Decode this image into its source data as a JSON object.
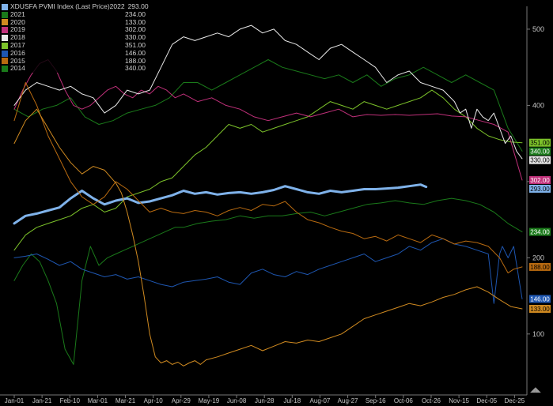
{
  "legend": {
    "title": "XDUSFA PVMI Index (Last Price)",
    "rows": [
      {
        "name": "2022",
        "value": "293.00",
        "color": "#7fb2ea"
      },
      {
        "name": "2021",
        "value": "234.00",
        "color": "#1a7a1a"
      },
      {
        "name": "2020",
        "value": "133.00",
        "color": "#d08a20"
      },
      {
        "name": "2019",
        "value": "302.00",
        "color": "#c0307a"
      },
      {
        "name": "2018",
        "value": "330.00",
        "color": "#e8e8e8"
      },
      {
        "name": "2017",
        "value": "351.00",
        "color": "#7cc22a"
      },
      {
        "name": "2016",
        "value": "146.00",
        "color": "#1e56b0"
      },
      {
        "name": "2015",
        "value": "188.00",
        "color": "#b86a10"
      },
      {
        "name": "2014",
        "value": "340.00",
        "color": "#1a7a1a"
      }
    ]
  },
  "chart_data": {
    "type": "line",
    "x_tick_labels": [
      "Jan-01",
      "Jan-21",
      "Feb-10",
      "Mar-01",
      "Mar-21",
      "Apr-10",
      "Apr-29",
      "May-19",
      "Jun-08",
      "Jun-28",
      "Jul-18",
      "Aug-07",
      "Aug-27",
      "Sep-16",
      "Oct-06",
      "Oct-26",
      "Nov-15",
      "Dec-05",
      "Dec-25"
    ],
    "y_ticks": [
      100,
      200,
      300,
      400,
      500
    ],
    "ylim": [
      20,
      530
    ],
    "grid": false,
    "legend_position": "top-left",
    "series": [
      {
        "name": "2014",
        "color": "#1a7a1a",
        "width": 1,
        "end_label": "340.00",
        "x": [
          0,
          10,
          20,
          30,
          40,
          50,
          60,
          70,
          80,
          90,
          100,
          110,
          120,
          130,
          140,
          150,
          160,
          170,
          180,
          190,
          200,
          210,
          220,
          230,
          240,
          250,
          260,
          270,
          280,
          290,
          300,
          310,
          320,
          330,
          340,
          350,
          360
        ],
        "y": [
          395,
          385,
          395,
          400,
          410,
          385,
          375,
          380,
          390,
          395,
          400,
          410,
          430,
          430,
          420,
          430,
          440,
          450,
          460,
          450,
          445,
          440,
          435,
          440,
          430,
          440,
          425,
          435,
          440,
          450,
          440,
          430,
          440,
          430,
          420,
          370,
          340
        ]
      },
      {
        "name": "2017",
        "color": "#7cc22a",
        "width": 1,
        "end_label": "351.00",
        "x": [
          0,
          8,
          16,
          24,
          32,
          40,
          48,
          56,
          64,
          72,
          80,
          88,
          96,
          104,
          112,
          120,
          128,
          136,
          144,
          152,
          160,
          168,
          176,
          184,
          192,
          200,
          208,
          216,
          224,
          232,
          240,
          248,
          256,
          264,
          272,
          280,
          288,
          296,
          304,
          312,
          320,
          328,
          336,
          344,
          352,
          360
        ],
        "y": [
          210,
          230,
          240,
          245,
          250,
          255,
          265,
          270,
          260,
          265,
          280,
          285,
          290,
          300,
          305,
          320,
          335,
          345,
          360,
          375,
          370,
          375,
          365,
          370,
          375,
          380,
          385,
          395,
          405,
          400,
          395,
          405,
          400,
          395,
          400,
          405,
          410,
          420,
          410,
          395,
          385,
          370,
          360,
          355,
          352,
          351
        ]
      },
      {
        "name": "2021",
        "color": "#1a7a1a",
        "width": 1,
        "end_label": "234.00",
        "x": [
          0,
          6,
          12,
          18,
          24,
          30,
          36,
          42,
          48,
          54,
          60,
          66,
          72,
          78,
          84,
          90,
          96,
          102,
          108,
          114,
          120,
          130,
          140,
          150,
          160,
          170,
          180,
          190,
          200,
          210,
          220,
          230,
          240,
          250,
          260,
          270,
          280,
          290,
          300,
          310,
          320,
          330,
          340,
          350,
          360
        ],
        "y": [
          170,
          190,
          205,
          195,
          170,
          140,
          80,
          60,
          170,
          215,
          190,
          200,
          205,
          210,
          215,
          220,
          225,
          230,
          235,
          240,
          240,
          245,
          248,
          250,
          255,
          252,
          255,
          255,
          258,
          260,
          255,
          260,
          265,
          270,
          272,
          275,
          272,
          270,
          275,
          278,
          275,
          270,
          260,
          245,
          234
        ]
      },
      {
        "name": "2019",
        "color": "#c0307a",
        "width": 1,
        "end_label": "302.00",
        "x": [
          0,
          6,
          12,
          18,
          24,
          30,
          36,
          42,
          48,
          54,
          60,
          66,
          72,
          78,
          84,
          90,
          96,
          102,
          108,
          114,
          120,
          130,
          140,
          150,
          160,
          170,
          180,
          190,
          200,
          210,
          220,
          230,
          240,
          250,
          260,
          270,
          280,
          290,
          300,
          310,
          320,
          330,
          340,
          350,
          360
        ],
        "y": [
          395,
          420,
          440,
          455,
          460,
          445,
          420,
          400,
          395,
          400,
          410,
          420,
          425,
          415,
          410,
          420,
          415,
          425,
          420,
          410,
          415,
          405,
          410,
          400,
          395,
          385,
          380,
          385,
          390,
          385,
          390,
          395,
          385,
          388,
          387,
          388,
          387,
          388,
          389,
          386,
          385,
          380,
          375,
          365,
          302
        ]
      },
      {
        "name": "2018",
        "color": "#e8e8e8",
        "width": 1,
        "end_label": "330.00",
        "x": [
          0,
          8,
          16,
          24,
          32,
          40,
          48,
          56,
          64,
          72,
          80,
          88,
          96,
          104,
          112,
          120,
          128,
          136,
          144,
          152,
          160,
          168,
          176,
          184,
          192,
          200,
          208,
          216,
          224,
          232,
          240,
          248,
          256,
          264,
          272,
          280,
          288,
          296,
          304,
          312,
          316,
          320,
          324,
          328,
          332,
          336,
          340,
          344,
          348,
          352,
          356,
          360
        ],
        "y": [
          400,
          420,
          430,
          425,
          420,
          425,
          415,
          410,
          390,
          400,
          420,
          415,
          420,
          450,
          480,
          490,
          485,
          490,
          495,
          490,
          500,
          505,
          495,
          500,
          485,
          480,
          470,
          460,
          475,
          480,
          470,
          460,
          450,
          430,
          440,
          445,
          430,
          425,
          420,
          405,
          390,
          395,
          370,
          395,
          385,
          380,
          390,
          370,
          350,
          360,
          340,
          330
        ]
      },
      {
        "name": "2022",
        "color": "#7fb2ea",
        "width": 3,
        "end_label": "293.00",
        "x": [
          0,
          8,
          16,
          24,
          32,
          40,
          48,
          56,
          64,
          72,
          80,
          88,
          96,
          104,
          112,
          120,
          128,
          136,
          144,
          152,
          160,
          168,
          176,
          184,
          192,
          200,
          208,
          216,
          224,
          232,
          240,
          248,
          256,
          264,
          272,
          280,
          288,
          292
        ],
        "y": [
          245,
          255,
          258,
          262,
          266,
          278,
          288,
          278,
          270,
          275,
          278,
          272,
          274,
          278,
          282,
          288,
          284,
          286,
          283,
          285,
          286,
          284,
          286,
          289,
          294,
          290,
          286,
          284,
          288,
          286,
          288,
          290,
          290,
          291,
          292,
          294,
          296,
          293
        ]
      },
      {
        "name": "2016",
        "color": "#1e56b0",
        "width": 1,
        "end_label": "146.00",
        "x": [
          0,
          8,
          16,
          24,
          32,
          40,
          48,
          56,
          64,
          72,
          80,
          88,
          96,
          104,
          112,
          120,
          128,
          136,
          144,
          152,
          160,
          168,
          176,
          184,
          192,
          200,
          208,
          216,
          224,
          232,
          240,
          248,
          256,
          264,
          272,
          280,
          288,
          296,
          304,
          312,
          320,
          328,
          336,
          340,
          344,
          346,
          350,
          354,
          360
        ],
        "y": [
          200,
          202,
          205,
          198,
          190,
          195,
          185,
          180,
          175,
          178,
          172,
          175,
          170,
          165,
          162,
          168,
          170,
          172,
          175,
          168,
          165,
          180,
          185,
          178,
          175,
          182,
          178,
          185,
          190,
          195,
          200,
          205,
          195,
          200,
          205,
          215,
          210,
          220,
          225,
          218,
          215,
          210,
          205,
          140,
          205,
          215,
          200,
          215,
          146
        ]
      },
      {
        "name": "2015",
        "color": "#b86a10",
        "width": 1,
        "end_label": "188.00",
        "x": [
          0,
          8,
          16,
          24,
          32,
          40,
          48,
          56,
          64,
          72,
          80,
          88,
          96,
          104,
          112,
          120,
          128,
          136,
          144,
          152,
          160,
          168,
          176,
          184,
          192,
          200,
          208,
          216,
          224,
          232,
          240,
          248,
          256,
          264,
          272,
          280,
          288,
          296,
          304,
          312,
          320,
          328,
          336,
          344,
          350,
          354,
          360
        ],
        "y": [
          380,
          430,
          400,
          360,
          330,
          300,
          280,
          270,
          280,
          300,
          290,
          275,
          260,
          265,
          260,
          258,
          262,
          260,
          255,
          262,
          266,
          262,
          270,
          268,
          274,
          260,
          250,
          246,
          240,
          235,
          232,
          225,
          228,
          222,
          230,
          225,
          220,
          230,
          225,
          218,
          222,
          220,
          215,
          200,
          180,
          185,
          188
        ]
      },
      {
        "name": "2020",
        "color": "#d08a20",
        "width": 1,
        "end_label": "133.00",
        "x": [
          0,
          8,
          16,
          24,
          32,
          40,
          48,
          56,
          64,
          72,
          76,
          80,
          84,
          88,
          92,
          96,
          100,
          104,
          108,
          112,
          116,
          120,
          124,
          128,
          132,
          136,
          144,
          152,
          160,
          168,
          176,
          184,
          192,
          200,
          208,
          216,
          224,
          232,
          240,
          248,
          256,
          264,
          272,
          280,
          288,
          296,
          304,
          312,
          320,
          328,
          336,
          344,
          352,
          360
        ],
        "y": [
          350,
          380,
          395,
          370,
          345,
          325,
          310,
          320,
          315,
          298,
          285,
          260,
          230,
          195,
          150,
          100,
          70,
          62,
          65,
          60,
          63,
          58,
          62,
          65,
          60,
          66,
          70,
          75,
          80,
          85,
          78,
          84,
          90,
          88,
          92,
          90,
          95,
          100,
          110,
          120,
          125,
          130,
          135,
          140,
          137,
          142,
          148,
          152,
          158,
          162,
          155,
          145,
          136,
          133
        ]
      }
    ]
  }
}
